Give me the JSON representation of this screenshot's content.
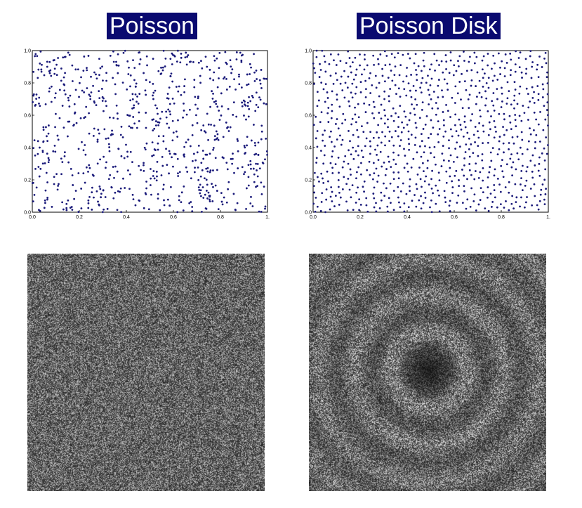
{
  "titles": {
    "left": "Poisson",
    "right": "Poisson Disk"
  },
  "colors": {
    "title_bg": "#0a0a70",
    "title_fg": "#ffffff",
    "point": "#1a1a7a",
    "spectrum_base": "#3a3a3a"
  },
  "chart_data": [
    {
      "type": "scatter",
      "title": "Poisson",
      "sampling": "uniform random (Poisson)",
      "point_count": 800,
      "xlim": [
        0,
        1
      ],
      "ylim": [
        0,
        1
      ],
      "xticks": [
        "0.0",
        "0.2",
        "0.4",
        "0.6",
        "0.8",
        "1."
      ],
      "yticks": [
        "0.0",
        "0.2",
        "0.4",
        "0.6",
        "0.8",
        "1.0"
      ],
      "xlabel": "",
      "ylabel": "",
      "grid": false
    },
    {
      "type": "scatter",
      "title": "Poisson Disk",
      "sampling": "poisson disk (blue noise)",
      "point_count": 900,
      "xlim": [
        0,
        1
      ],
      "ylim": [
        0,
        1
      ],
      "xticks": [
        "0.0",
        "0.2",
        "0.4",
        "0.6",
        "0.8",
        "1."
      ],
      "yticks": [
        "0.0",
        "0.2",
        "0.4",
        "0.6",
        "0.8",
        "1.0"
      ],
      "xlabel": "",
      "ylabel": "",
      "grid": false
    },
    {
      "type": "heatmap",
      "description": "power spectrum of Poisson sampling",
      "pattern": "uniform noise"
    },
    {
      "type": "heatmap",
      "description": "power spectrum of Poisson disk sampling",
      "pattern": "dark center with concentric rings"
    }
  ]
}
